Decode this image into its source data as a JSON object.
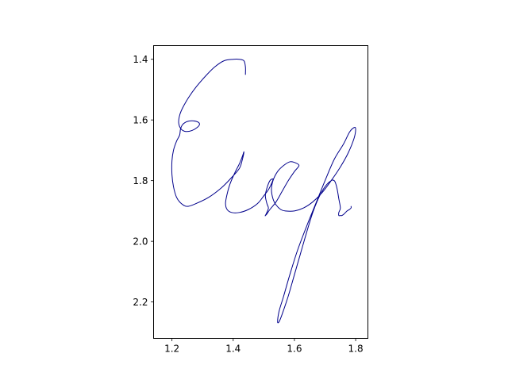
{
  "chart_data": {
    "type": "line",
    "title": "",
    "xlabel": "",
    "ylabel": "",
    "xlim": [
      1.14,
      1.84
    ],
    "ylim": [
      2.32,
      1.355
    ],
    "y_inverted": true,
    "grid": false,
    "x_ticks": [
      1.2,
      1.4,
      1.6,
      1.8
    ],
    "y_ticks": [
      1.4,
      1.6,
      1.8,
      2.0,
      2.2
    ],
    "x_tick_labels": [
      "1.2",
      "1.4",
      "1.6",
      "1.8"
    ],
    "y_tick_labels": [
      "1.4",
      "1.6",
      "1.8",
      "2.0",
      "2.2"
    ],
    "line_color": "#00008b",
    "series": [
      {
        "x": [
          1.44,
          1.44,
          1.435,
          1.42,
          1.4,
          1.37,
          1.34,
          1.31,
          1.28,
          1.255,
          1.235,
          1.225,
          1.222,
          1.23,
          1.245,
          1.265,
          1.282,
          1.29,
          1.285,
          1.27,
          1.25,
          1.235,
          1.228,
          1.225,
          1.215,
          1.205,
          1.2,
          1.2,
          1.205,
          1.215,
          1.23,
          1.25,
          1.28,
          1.32,
          1.36,
          1.39,
          1.42,
          1.43,
          1.435,
          1.43,
          1.42,
          1.405,
          1.39,
          1.38,
          1.375,
          1.38,
          1.395,
          1.42,
          1.45,
          1.48,
          1.5,
          1.515,
          1.525,
          1.53,
          1.52,
          1.51,
          1.505,
          1.51,
          1.515,
          1.51,
          1.505,
          1.505,
          1.51,
          1.52,
          1.54,
          1.56,
          1.58,
          1.6,
          1.615,
          1.6,
          1.585,
          1.565,
          1.545,
          1.53,
          1.525,
          1.53,
          1.54,
          1.555,
          1.57,
          1.6,
          1.63,
          1.66,
          1.69,
          1.72,
          1.75,
          1.775,
          1.795,
          1.8,
          1.795,
          1.78,
          1.76,
          1.73,
          1.7,
          1.67,
          1.64,
          1.61,
          1.585,
          1.565,
          1.55,
          1.545,
          1.55,
          1.56,
          1.58,
          1.6,
          1.62,
          1.64,
          1.66,
          1.68,
          1.7,
          1.72,
          1.73,
          1.735,
          1.74,
          1.745,
          1.75,
          1.745,
          1.745,
          1.75,
          1.755,
          1.762,
          1.772,
          1.78,
          1.785,
          1.785
        ],
        "y": [
          1.45,
          1.425,
          1.405,
          1.4,
          1.4,
          1.405,
          1.425,
          1.455,
          1.49,
          1.525,
          1.56,
          1.585,
          1.61,
          1.63,
          1.638,
          1.635,
          1.625,
          1.615,
          1.607,
          1.603,
          1.605,
          1.615,
          1.63,
          1.65,
          1.67,
          1.7,
          1.735,
          1.78,
          1.82,
          1.855,
          1.875,
          1.885,
          1.875,
          1.855,
          1.825,
          1.795,
          1.76,
          1.73,
          1.705,
          1.72,
          1.745,
          1.775,
          1.81,
          1.845,
          1.875,
          1.895,
          1.905,
          1.905,
          1.895,
          1.875,
          1.85,
          1.83,
          1.81,
          1.795,
          1.8,
          1.825,
          1.85,
          1.875,
          1.89,
          1.905,
          1.915,
          1.915,
          1.91,
          1.895,
          1.87,
          1.835,
          1.8,
          1.77,
          1.75,
          1.74,
          1.738,
          1.75,
          1.77,
          1.8,
          1.83,
          1.86,
          1.88,
          1.895,
          1.9,
          1.9,
          1.89,
          1.87,
          1.84,
          1.8,
          1.755,
          1.71,
          1.66,
          1.63,
          1.625,
          1.64,
          1.68,
          1.73,
          1.8,
          1.875,
          1.95,
          2.03,
          2.11,
          2.18,
          2.23,
          2.265,
          2.265,
          2.24,
          2.18,
          2.11,
          2.04,
          1.97,
          1.905,
          1.855,
          1.82,
          1.8,
          1.8,
          1.81,
          1.83,
          1.86,
          1.89,
          1.905,
          1.915,
          1.915,
          1.915,
          1.91,
          1.9,
          1.895,
          1.89,
          1.885
        ]
      }
    ]
  }
}
